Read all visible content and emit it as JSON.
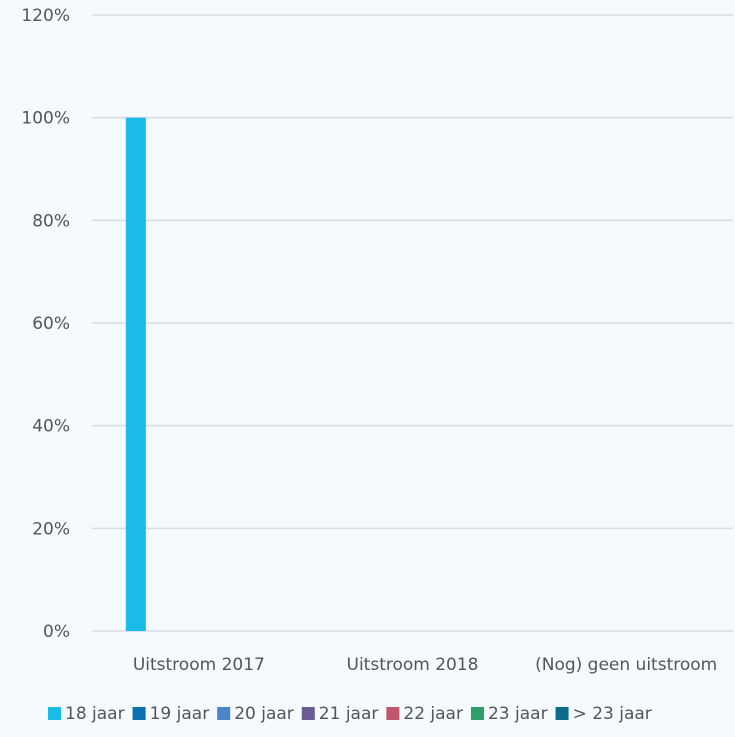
{
  "chart_data": {
    "type": "bar",
    "categories": [
      "Uitstroom 2017",
      "Uitstroom 2018",
      "(Nog) geen uitstroom"
    ],
    "series": [
      {
        "name": "18 jaar",
        "color": "#1bbbe9",
        "values": [
          100,
          0,
          0
        ]
      },
      {
        "name": "19 jaar",
        "color": "#0b6fb0",
        "values": [
          0,
          0,
          0
        ]
      },
      {
        "name": "20 jaar",
        "color": "#4a86c7",
        "values": [
          0,
          0,
          0
        ]
      },
      {
        "name": "21 jaar",
        "color": "#6b5b95",
        "values": [
          0,
          0,
          0
        ]
      },
      {
        "name": "22 jaar",
        "color": "#c1566f",
        "values": [
          0,
          0,
          0
        ]
      },
      {
        "name": "23 jaar",
        "color": "#2e9e6a",
        "values": [
          0,
          0,
          0
        ]
      },
      {
        "name": "> 23 jaar",
        "color": "#0d6b8c",
        "values": [
          0,
          0,
          0
        ]
      }
    ],
    "ylim": [
      0,
      120
    ],
    "yticks": [
      "0%",
      "20%",
      "40%",
      "60%",
      "80%",
      "100%",
      "120%"
    ],
    "grid": true,
    "legend_position": "bottom"
  },
  "colors": {
    "background": "#f4fafd",
    "gridline": "#d9dde0",
    "text": "#555555"
  }
}
